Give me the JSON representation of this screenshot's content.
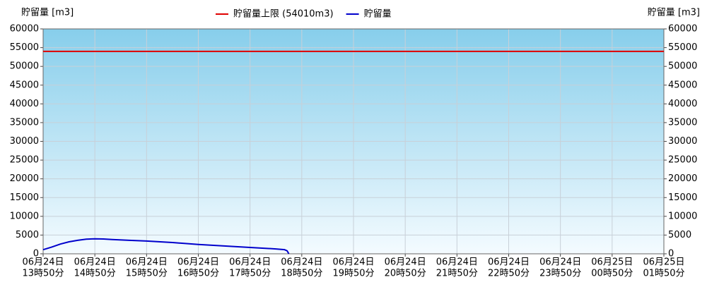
{
  "chart_data": {
    "type": "line",
    "y_label": "貯留量 [m3]",
    "y2_label": "貯留量 [m3]",
    "xlim": [
      "06-24 13:50",
      "06-25 01:50"
    ],
    "xticks": [
      {
        "value": "06-24 13:50",
        "label": [
          "06月24日",
          "13時50分"
        ]
      },
      {
        "value": "06-24 14:50",
        "label": [
          "06月24日",
          "14時50分"
        ]
      },
      {
        "value": "06-24 15:50",
        "label": [
          "06月24日",
          "15時50分"
        ]
      },
      {
        "value": "06-24 16:50",
        "label": [
          "06月24日",
          "16時50分"
        ]
      },
      {
        "value": "06-24 17:50",
        "label": [
          "06月24日",
          "17時50分"
        ]
      },
      {
        "value": "06-24 18:50",
        "label": [
          "06月24日",
          "18時50分"
        ]
      },
      {
        "value": "06-24 19:50",
        "label": [
          "06月24日",
          "19時50分"
        ]
      },
      {
        "value": "06-24 20:50",
        "label": [
          "06月24日",
          "20時50分"
        ]
      },
      {
        "value": "06-24 21:50",
        "label": [
          "06月24日",
          "21時50分"
        ]
      },
      {
        "value": "06-24 22:50",
        "label": [
          "06月24日",
          "22時50分"
        ]
      },
      {
        "value": "06-24 23:50",
        "label": [
          "06月24日",
          "23時50分"
        ]
      },
      {
        "value": "06-25 00:50",
        "label": [
          "06月25日",
          "00時50分"
        ]
      },
      {
        "value": "06-25 01:50",
        "label": [
          "06月25日",
          "01時50分"
        ]
      }
    ],
    "ylim": [
      0,
      60000
    ],
    "yticks": [
      0,
      5000,
      10000,
      15000,
      20000,
      25000,
      30000,
      35000,
      40000,
      45000,
      50000,
      55000,
      60000
    ],
    "y2lim": [
      0,
      60000
    ],
    "y2ticks": [
      0,
      5000,
      10000,
      15000,
      20000,
      25000,
      30000,
      35000,
      40000,
      45000,
      50000,
      55000,
      60000
    ],
    "grid": true,
    "legend": "top",
    "series": [
      {
        "name": "貯留量上限 (54010m3)",
        "color": "#e00000",
        "x": [
          "06-24 13:50",
          "06-25 01:50"
        ],
        "values": [
          54010,
          54010
        ]
      },
      {
        "name": "貯留量",
        "color": "#0000cc",
        "x": [
          "06-24 13:50",
          "06-24 14:00",
          "06-24 14:10",
          "06-24 14:20",
          "06-24 14:30",
          "06-24 14:40",
          "06-24 14:50",
          "06-24 15:00",
          "06-24 15:10",
          "06-24 15:30",
          "06-24 15:50",
          "06-24 16:20",
          "06-24 16:50",
          "06-24 17:20",
          "06-24 17:50",
          "06-24 18:20",
          "06-24 18:30",
          "06-24 18:33",
          "06-24 18:35"
        ],
        "values": [
          1100,
          1800,
          2600,
          3200,
          3600,
          3900,
          4000,
          3950,
          3800,
          3600,
          3400,
          3000,
          2500,
          2100,
          1700,
          1300,
          1100,
          800,
          0
        ]
      }
    ]
  }
}
